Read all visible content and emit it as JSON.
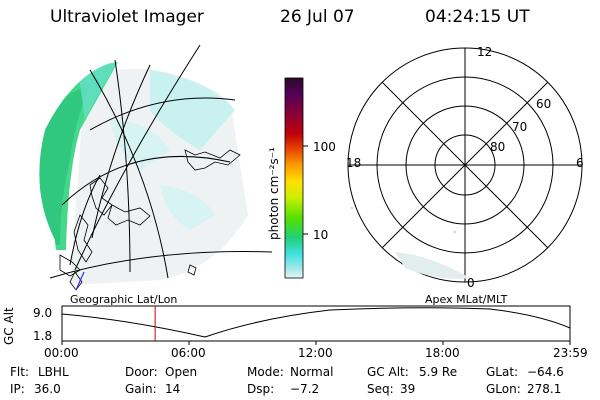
{
  "header": {
    "instrument": "Ultraviolet Imager",
    "date": "26 Jul 07",
    "time": "04:24:15 UT"
  },
  "colorbar": {
    "unit_label": "photon cm⁻²s⁻¹",
    "ticks": [
      "100",
      "10"
    ],
    "colors": [
      "#2a0a2a",
      "#55005a",
      "#8a0035",
      "#c0000a",
      "#e84a00",
      "#ffa000",
      "#ffe000",
      "#c8f000",
      "#55e000",
      "#20d078",
      "#40e0e0",
      "#a0e8e8",
      "#ddeeee"
    ]
  },
  "left_panel": {
    "caption": "Geographic Lat/Lon"
  },
  "right_panel": {
    "caption": "Apex MLat/MLT",
    "mlt_labels": {
      "top": "12",
      "left": "18",
      "right": "6",
      "bottom": "0"
    },
    "lat_labels": [
      "60",
      "70",
      "80"
    ]
  },
  "altitude_strip": {
    "axis_label": "GC Alt",
    "ticks_y": [
      "9.0",
      "1.8"
    ],
    "ticks_x": [
      "00:00",
      "06:00",
      "12:00",
      "18:00",
      "23:59"
    ],
    "current_marker_hour": 4.4
  },
  "status": {
    "row1": [
      {
        "key": "Flt:",
        "value": "LBHL"
      },
      {
        "key": "Door:",
        "value": "Open"
      },
      {
        "key": "Mode:",
        "value": "Normal"
      },
      {
        "key": "GC Alt:",
        "value": "5.9 Re"
      },
      {
        "key": "GLat:",
        "value": "−64.6"
      }
    ],
    "row2": [
      {
        "key": "IP:",
        "value": "36.0"
      },
      {
        "key": "Gain:",
        "value": "14"
      },
      {
        "key": "Dsp:",
        "value": "−7.2"
      },
      {
        "key": "Seq:",
        "value": "39"
      },
      {
        "key": "GLon:",
        "value": "278.1"
      }
    ]
  }
}
